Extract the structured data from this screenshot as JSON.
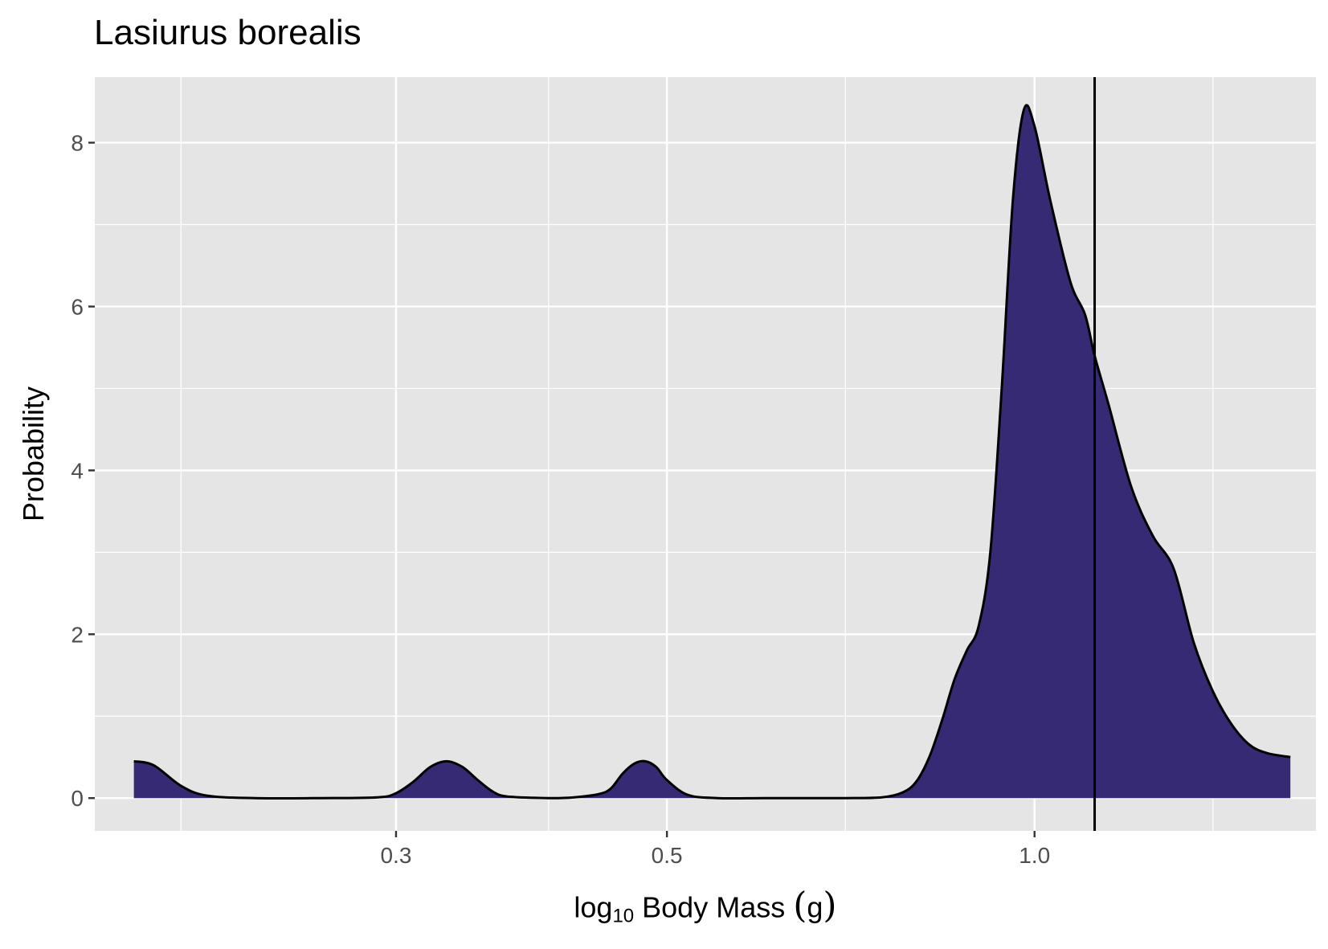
{
  "chart_data": {
    "type": "area",
    "title": "Lasiurus borealis",
    "xlabel": {
      "prefix": "log",
      "subscript": "10",
      "main": " Body Mass ",
      "unit_open": "(",
      "unit": "g",
      "unit_close": ")"
    },
    "ylabel": "Probability",
    "x_scale": "log10",
    "xlim": [
      0.17,
      1.7
    ],
    "ylim": [
      -0.4,
      8.8
    ],
    "x_major_ticks": [
      0.3,
      0.5,
      1.0
    ],
    "x_tick_labels": [
      "0.3",
      "0.5",
      "1.0"
    ],
    "x_minor_gridlines": [
      0.2,
      0.4,
      0.7,
      1.4
    ],
    "y_major_ticks": [
      0,
      2,
      4,
      6,
      8
    ],
    "y_tick_labels": [
      "0",
      "2",
      "4",
      "6",
      "8"
    ],
    "grid": true,
    "legend": "none",
    "reference_line_x": 1.12,
    "colors": {
      "panel": "#e5e5e5",
      "grid": "#ffffff",
      "fill": "#372a75",
      "outline": "#000000",
      "reference_line": "#000000"
    },
    "series": [
      {
        "x": [
          0.183,
          0.19,
          0.2,
          0.21,
          0.23,
          0.26,
          0.29,
          0.3,
          0.31,
          0.32,
          0.33,
          0.34,
          0.35,
          0.36,
          0.37,
          0.4,
          0.42,
          0.44,
          0.45,
          0.46,
          0.47,
          0.48,
          0.49,
          0.5,
          0.52,
          0.55,
          0.6,
          0.65,
          0.7,
          0.75,
          0.78,
          0.8,
          0.82,
          0.84,
          0.86,
          0.88,
          0.9,
          0.92,
          0.94,
          0.96,
          0.98,
          1.0,
          1.03,
          1.07,
          1.1,
          1.12,
          1.15,
          1.2,
          1.25,
          1.3,
          1.35,
          1.4,
          1.45,
          1.5,
          1.55,
          1.62
        ],
        "y": [
          0.45,
          0.4,
          0.15,
          0.03,
          0.0,
          0.0,
          0.01,
          0.06,
          0.2,
          0.38,
          0.45,
          0.38,
          0.22,
          0.08,
          0.02,
          0.0,
          0.01,
          0.05,
          0.12,
          0.3,
          0.42,
          0.45,
          0.38,
          0.22,
          0.04,
          0.0,
          0.0,
          0.0,
          0.0,
          0.01,
          0.07,
          0.2,
          0.5,
          0.95,
          1.45,
          1.8,
          2.1,
          3.0,
          5.0,
          7.3,
          8.4,
          8.2,
          7.3,
          6.3,
          5.9,
          5.4,
          4.8,
          3.8,
          3.2,
          2.8,
          1.9,
          1.3,
          0.9,
          0.65,
          0.55,
          0.5
        ]
      }
    ]
  }
}
